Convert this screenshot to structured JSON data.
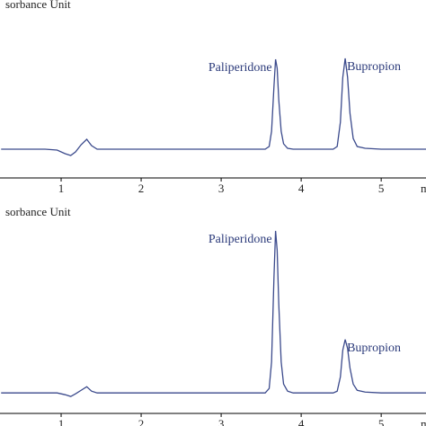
{
  "chart_data": [
    {
      "type": "line",
      "y_label": "sorbance Unit",
      "x_label": "m",
      "xlim": [
        0.236,
        5.56
      ],
      "ylim": [
        -0.32,
        1.54
      ],
      "xticks": [
        1,
        2,
        3,
        4,
        5
      ],
      "series": [
        {
          "color": "#3b4a8c",
          "x": [
            0.25,
            0.8,
            0.95,
            1.05,
            1.12,
            1.18,
            1.25,
            1.32,
            1.38,
            1.45,
            2.0,
            3.0,
            3.55,
            3.6,
            3.63,
            3.66,
            3.68,
            3.7,
            3.72,
            3.75,
            3.78,
            3.83,
            3.9,
            4.4,
            4.45,
            4.49,
            4.52,
            4.55,
            4.58,
            4.61,
            4.65,
            4.7,
            4.8,
            5.0,
            5.56
          ],
          "values": [
            0,
            0,
            -0.01,
            -0.05,
            -0.07,
            -0.03,
            0.05,
            0.11,
            0.04,
            0,
            0,
            0,
            0,
            0.03,
            0.2,
            0.7,
            1.0,
            0.9,
            0.55,
            0.2,
            0.06,
            0.01,
            0,
            0,
            0.03,
            0.3,
            0.8,
            1.01,
            0.8,
            0.4,
            0.12,
            0.03,
            0.01,
            0,
            0
          ]
        }
      ],
      "annotations": [
        "Paliperidone",
        "Bupropion"
      ]
    },
    {
      "type": "line",
      "y_label": "sorbance Unit",
      "x_label": "m",
      "xlim": [
        0.236,
        5.56
      ],
      "ylim": [
        -0.23,
        1.95
      ],
      "xticks": [
        1,
        2,
        3,
        4,
        5
      ],
      "series": [
        {
          "color": "#3b4a8c",
          "x": [
            0.25,
            0.8,
            0.95,
            1.05,
            1.12,
            1.18,
            1.25,
            1.32,
            1.38,
            1.45,
            2.0,
            3.0,
            3.55,
            3.6,
            3.63,
            3.66,
            3.68,
            3.7,
            3.72,
            3.75,
            3.78,
            3.83,
            3.9,
            4.4,
            4.45,
            4.49,
            4.52,
            4.55,
            4.58,
            4.61,
            4.65,
            4.7,
            4.8,
            5.0,
            5.56
          ],
          "values": [
            0,
            0,
            0,
            -0.02,
            -0.04,
            -0.01,
            0.03,
            0.07,
            0.02,
            0,
            0,
            0,
            0,
            0.05,
            0.35,
            1.3,
            1.82,
            1.6,
            1.0,
            0.35,
            0.1,
            0.02,
            0,
            0,
            0.02,
            0.18,
            0.48,
            0.6,
            0.5,
            0.28,
            0.1,
            0.03,
            0.01,
            0,
            0
          ]
        }
      ],
      "annotations": [
        "Paliperidone",
        "Bupropion"
      ]
    }
  ]
}
